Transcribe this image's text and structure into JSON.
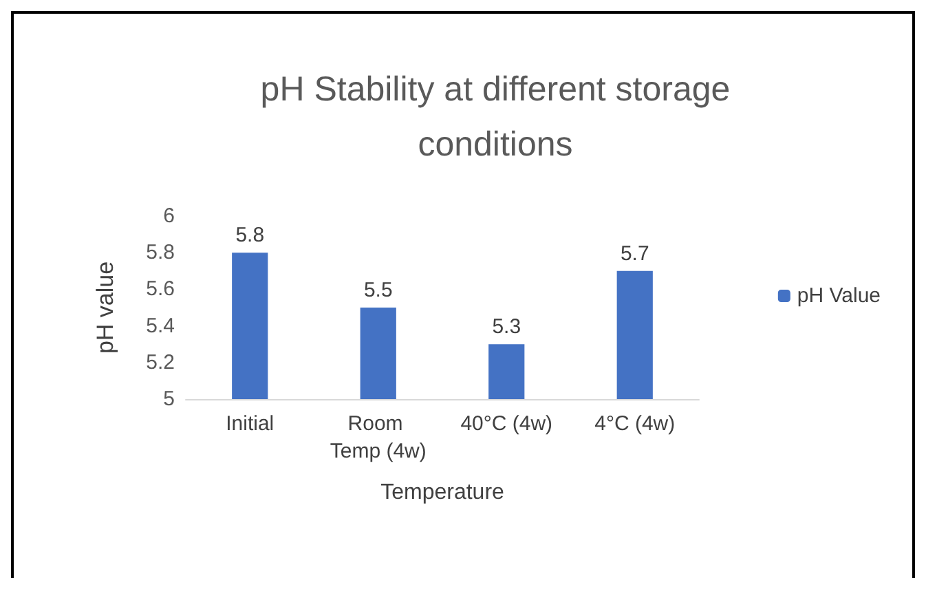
{
  "chart_data": {
    "type": "bar",
    "title": "pH Stability at different storage\nconditions",
    "xlabel": "Temperature",
    "ylabel": "pH value",
    "categories": [
      "Initial",
      "Room Temp (4w)",
      "40°C (4w)",
      "4°C (4w)"
    ],
    "series": [
      {
        "name": "pH Value",
        "color": "#4472c4",
        "values": [
          5.8,
          5.5,
          5.3,
          5.7
        ]
      }
    ],
    "ylim": [
      5,
      6
    ],
    "yticks": [
      5,
      5.2,
      5.4,
      5.6,
      5.8,
      6
    ],
    "grid": false,
    "legend": "right",
    "data_labels": true
  }
}
